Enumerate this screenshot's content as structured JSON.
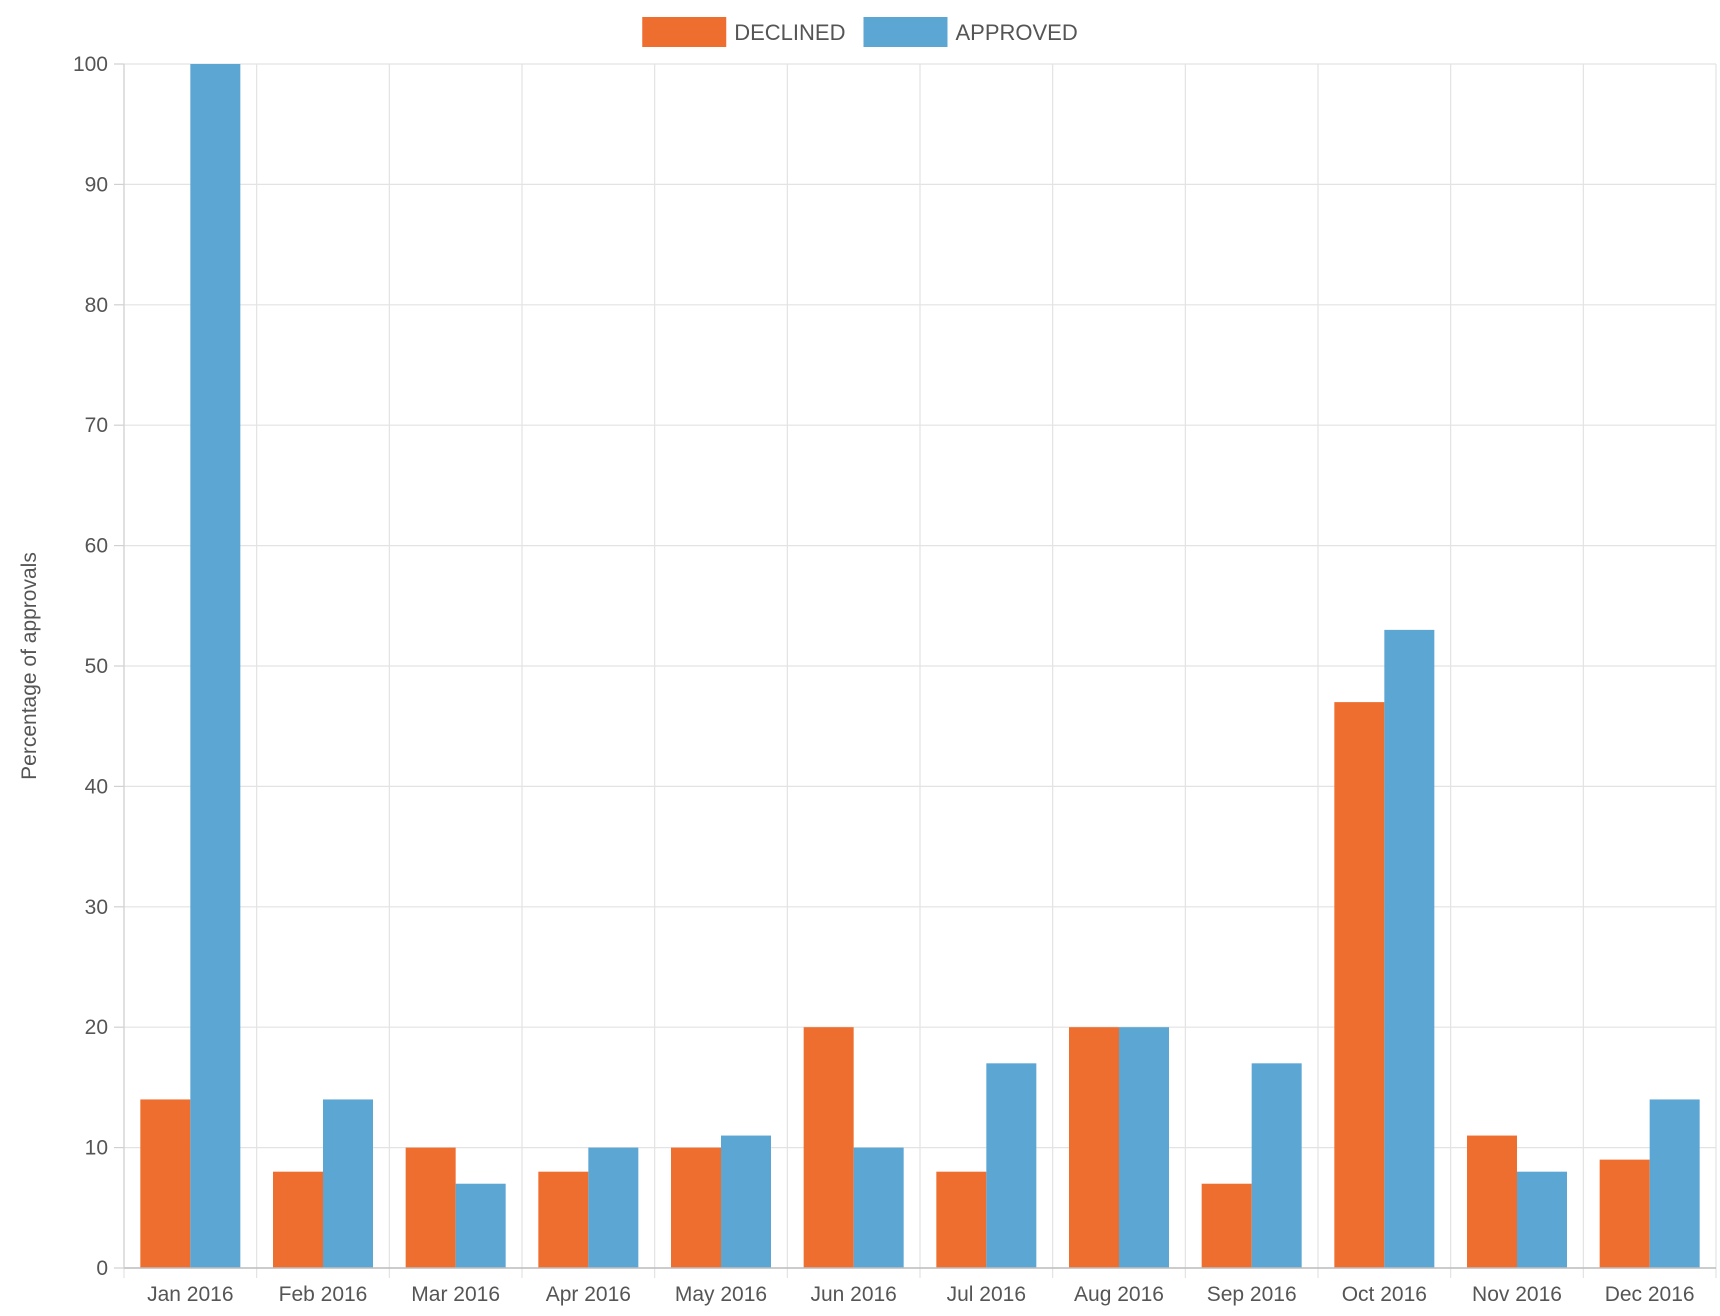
{
  "chart_data": {
    "type": "bar",
    "categories": [
      "Jan 2016",
      "Feb 2016",
      "Mar 2016",
      "Apr 2016",
      "May 2016",
      "Jun 2016",
      "Jul 2016",
      "Aug 2016",
      "Sep 2016",
      "Oct 2016",
      "Nov 2016",
      "Dec 2016"
    ],
    "series": [
      {
        "name": "DECLINED",
        "color": "#ee6e2f",
        "values": [
          14,
          8,
          10,
          8,
          10,
          20,
          8,
          20,
          7,
          47,
          11,
          9
        ]
      },
      {
        "name": "APPROVED",
        "color": "#5ca6d4",
        "values": [
          100,
          14,
          7,
          10,
          11,
          10,
          17,
          20,
          17,
          53,
          8,
          14
        ]
      }
    ],
    "title": "",
    "xlabel": "",
    "ylabel": "Percentage of approvals",
    "ylim": [
      0,
      100
    ],
    "yticks": [
      "0",
      "10",
      "20",
      "30",
      "40",
      "50",
      "60",
      "70",
      "80",
      "90",
      "100"
    ],
    "grid": true,
    "legend_position": "top-center"
  }
}
